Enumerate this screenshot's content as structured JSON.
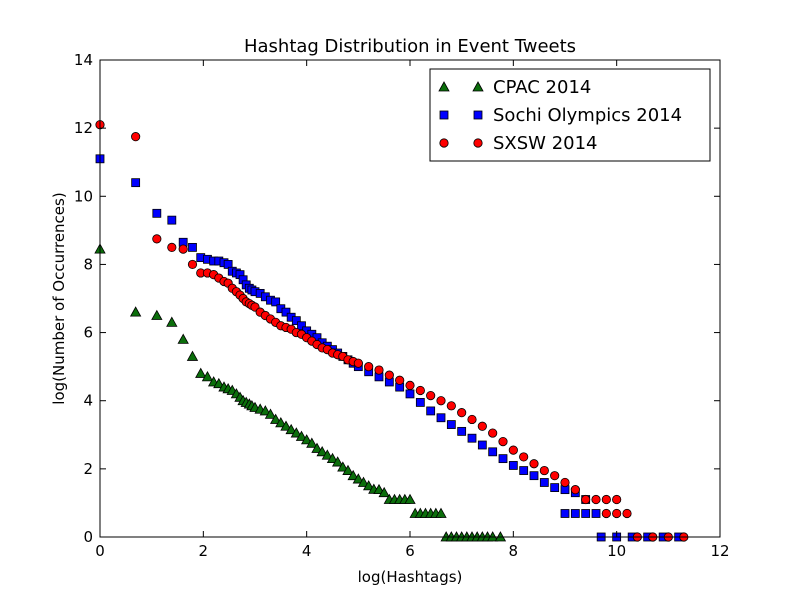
{
  "chart_data": {
    "type": "scatter",
    "title": "Hashtag Distribution in Event Tweets",
    "xlabel": "log(Hashtags)",
    "ylabel": "log(Number of Occurrences)",
    "xlim": [
      0,
      12
    ],
    "ylim": [
      0,
      14
    ],
    "xticks": [
      "0",
      "2",
      "4",
      "6",
      "8",
      "10",
      "12"
    ],
    "yticks": [
      "0",
      "2",
      "4",
      "6",
      "8",
      "10",
      "12",
      "14"
    ],
    "grid": false,
    "legend_position": "top-right",
    "series": [
      {
        "name": "CPAC 2014",
        "marker": "triangle",
        "color": "#0b6e0b",
        "points": [
          [
            0,
            8.45
          ],
          [
            0.69,
            6.6
          ],
          [
            1.1,
            6.5
          ],
          [
            1.39,
            6.3
          ],
          [
            1.61,
            5.8
          ],
          [
            1.79,
            5.3
          ],
          [
            1.95,
            4.8
          ],
          [
            2.08,
            4.7
          ],
          [
            2.2,
            4.55
          ],
          [
            2.3,
            4.5
          ],
          [
            2.4,
            4.4
          ],
          [
            2.48,
            4.35
          ],
          [
            2.56,
            4.3
          ],
          [
            2.64,
            4.2
          ],
          [
            2.71,
            4.1
          ],
          [
            2.77,
            4.0
          ],
          [
            2.83,
            3.95
          ],
          [
            2.89,
            3.9
          ],
          [
            2.94,
            3.85
          ],
          [
            3.0,
            3.8
          ],
          [
            3.1,
            3.75
          ],
          [
            3.2,
            3.7
          ],
          [
            3.3,
            3.6
          ],
          [
            3.4,
            3.45
          ],
          [
            3.5,
            3.35
          ],
          [
            3.6,
            3.25
          ],
          [
            3.7,
            3.15
          ],
          [
            3.8,
            3.05
          ],
          [
            3.9,
            2.95
          ],
          [
            4.0,
            2.85
          ],
          [
            4.1,
            2.75
          ],
          [
            4.2,
            2.6
          ],
          [
            4.3,
            2.5
          ],
          [
            4.4,
            2.4
          ],
          [
            4.5,
            2.3
          ],
          [
            4.6,
            2.2
          ],
          [
            4.7,
            2.05
          ],
          [
            4.8,
            1.95
          ],
          [
            4.9,
            1.8
          ],
          [
            5.0,
            1.7
          ],
          [
            5.1,
            1.6
          ],
          [
            5.2,
            1.5
          ],
          [
            5.3,
            1.4
          ],
          [
            5.4,
            1.39
          ],
          [
            5.5,
            1.3
          ],
          [
            5.6,
            1.1
          ],
          [
            5.7,
            1.1
          ],
          [
            5.8,
            1.1
          ],
          [
            5.9,
            1.1
          ],
          [
            6.0,
            1.1
          ],
          [
            6.1,
            0.69
          ],
          [
            6.2,
            0.69
          ],
          [
            6.3,
            0.69
          ],
          [
            6.4,
            0.69
          ],
          [
            6.5,
            0.69
          ],
          [
            6.6,
            0.69
          ],
          [
            6.7,
            0.0
          ],
          [
            6.8,
            0.0
          ],
          [
            6.9,
            0.0
          ],
          [
            7.0,
            0.0
          ],
          [
            7.1,
            0.0
          ],
          [
            7.2,
            0.0
          ],
          [
            7.3,
            0.0
          ],
          [
            7.4,
            0.0
          ],
          [
            7.5,
            0.0
          ],
          [
            7.6,
            0.0
          ],
          [
            7.75,
            0.0
          ]
        ]
      },
      {
        "name": "Sochi Olympics 2014",
        "marker": "square",
        "color": "#0000ff",
        "points": [
          [
            0,
            11.1
          ],
          [
            0.69,
            10.4
          ],
          [
            1.1,
            9.5
          ],
          [
            1.39,
            9.3
          ],
          [
            1.61,
            8.65
          ],
          [
            1.79,
            8.5
          ],
          [
            1.95,
            8.2
          ],
          [
            2.08,
            8.15
          ],
          [
            2.2,
            8.1
          ],
          [
            2.3,
            8.1
          ],
          [
            2.4,
            8.05
          ],
          [
            2.48,
            8.0
          ],
          [
            2.56,
            7.8
          ],
          [
            2.64,
            7.75
          ],
          [
            2.71,
            7.7
          ],
          [
            2.77,
            7.55
          ],
          [
            2.83,
            7.4
          ],
          [
            2.89,
            7.3
          ],
          [
            2.94,
            7.25
          ],
          [
            3.0,
            7.2
          ],
          [
            3.1,
            7.15
          ],
          [
            3.2,
            7.05
          ],
          [
            3.3,
            6.95
          ],
          [
            3.4,
            6.9
          ],
          [
            3.5,
            6.7
          ],
          [
            3.6,
            6.6
          ],
          [
            3.7,
            6.45
          ],
          [
            3.8,
            6.35
          ],
          [
            3.9,
            6.2
          ],
          [
            4.0,
            6.05
          ],
          [
            4.1,
            5.95
          ],
          [
            4.2,
            5.85
          ],
          [
            4.3,
            5.7
          ],
          [
            4.4,
            5.6
          ],
          [
            4.5,
            5.5
          ],
          [
            4.6,
            5.4
          ],
          [
            4.7,
            5.3
          ],
          [
            4.8,
            5.2
          ],
          [
            4.9,
            5.1
          ],
          [
            5.0,
            5.0
          ],
          [
            5.2,
            4.85
          ],
          [
            5.4,
            4.7
          ],
          [
            5.6,
            4.55
          ],
          [
            5.8,
            4.4
          ],
          [
            6.0,
            4.2
          ],
          [
            6.2,
            3.95
          ],
          [
            6.4,
            3.7
          ],
          [
            6.6,
            3.5
          ],
          [
            6.8,
            3.3
          ],
          [
            7.0,
            3.1
          ],
          [
            7.2,
            2.9
          ],
          [
            7.4,
            2.7
          ],
          [
            7.6,
            2.5
          ],
          [
            7.8,
            2.3
          ],
          [
            8.0,
            2.1
          ],
          [
            8.2,
            1.95
          ],
          [
            8.4,
            1.8
          ],
          [
            8.6,
            1.6
          ],
          [
            8.8,
            1.45
          ],
          [
            9.0,
            1.39
          ],
          [
            9.2,
            1.3
          ],
          [
            9.4,
            1.1
          ],
          [
            9.0,
            0.69
          ],
          [
            9.2,
            0.69
          ],
          [
            9.4,
            0.69
          ],
          [
            9.6,
            0.69
          ],
          [
            9.7,
            0.0
          ],
          [
            10.0,
            0.0
          ],
          [
            10.3,
            0.0
          ],
          [
            10.6,
            0.0
          ],
          [
            10.9,
            0.0
          ],
          [
            11.2,
            0.0
          ]
        ]
      },
      {
        "name": "SXSW 2014",
        "marker": "circle",
        "color": "#ff0000",
        "points": [
          [
            0,
            12.1
          ],
          [
            0.69,
            11.75
          ],
          [
            1.1,
            8.75
          ],
          [
            1.39,
            8.5
          ],
          [
            1.61,
            8.45
          ],
          [
            1.79,
            8.0
          ],
          [
            1.95,
            7.75
          ],
          [
            2.08,
            7.75
          ],
          [
            2.2,
            7.7
          ],
          [
            2.3,
            7.6
          ],
          [
            2.4,
            7.5
          ],
          [
            2.48,
            7.45
          ],
          [
            2.56,
            7.3
          ],
          [
            2.64,
            7.2
          ],
          [
            2.71,
            7.1
          ],
          [
            2.77,
            7.0
          ],
          [
            2.83,
            6.9
          ],
          [
            2.89,
            6.85
          ],
          [
            2.94,
            6.8
          ],
          [
            3.0,
            6.75
          ],
          [
            3.1,
            6.6
          ],
          [
            3.2,
            6.5
          ],
          [
            3.3,
            6.4
          ],
          [
            3.4,
            6.3
          ],
          [
            3.5,
            6.2
          ],
          [
            3.6,
            6.15
          ],
          [
            3.7,
            6.1
          ],
          [
            3.8,
            6.0
          ],
          [
            3.9,
            5.95
          ],
          [
            4.0,
            5.85
          ],
          [
            4.1,
            5.75
          ],
          [
            4.2,
            5.65
          ],
          [
            4.3,
            5.55
          ],
          [
            4.4,
            5.5
          ],
          [
            4.5,
            5.4
          ],
          [
            4.6,
            5.35
          ],
          [
            4.7,
            5.3
          ],
          [
            4.8,
            5.2
          ],
          [
            4.9,
            5.15
          ],
          [
            5.0,
            5.1
          ],
          [
            5.2,
            5.0
          ],
          [
            5.4,
            4.9
          ],
          [
            5.6,
            4.75
          ],
          [
            5.8,
            4.6
          ],
          [
            6.0,
            4.45
          ],
          [
            6.2,
            4.3
          ],
          [
            6.4,
            4.15
          ],
          [
            6.6,
            4.0
          ],
          [
            6.8,
            3.85
          ],
          [
            7.0,
            3.65
          ],
          [
            7.2,
            3.45
          ],
          [
            7.4,
            3.25
          ],
          [
            7.6,
            3.05
          ],
          [
            7.8,
            2.8
          ],
          [
            8.0,
            2.55
          ],
          [
            8.2,
            2.35
          ],
          [
            8.4,
            2.15
          ],
          [
            8.6,
            1.95
          ],
          [
            8.8,
            1.8
          ],
          [
            9.0,
            1.6
          ],
          [
            9.2,
            1.39
          ],
          [
            9.4,
            1.1
          ],
          [
            9.6,
            1.1
          ],
          [
            9.8,
            1.1
          ],
          [
            10.0,
            1.1
          ],
          [
            9.8,
            0.69
          ],
          [
            10.0,
            0.69
          ],
          [
            10.2,
            0.69
          ],
          [
            10.4,
            0.0
          ],
          [
            10.7,
            0.0
          ],
          [
            11.0,
            0.0
          ],
          [
            11.3,
            0.0
          ]
        ]
      }
    ]
  }
}
